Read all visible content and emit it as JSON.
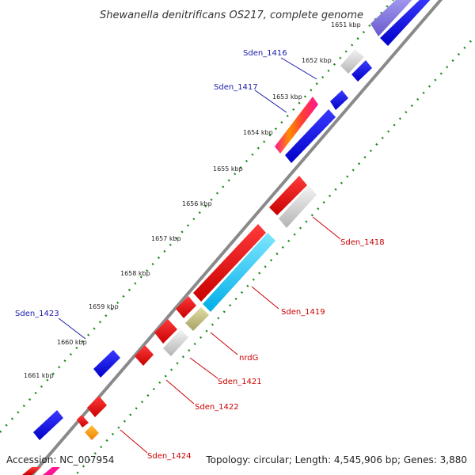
{
  "title": "Shewanella denitrificans OS217, complete genome",
  "kbp_marks": [
    "1651 kbp",
    "1652 kbp",
    "1653 kbp",
    "1654 kbp",
    "1655 kbp",
    "1656 kbp",
    "1657 kbp",
    "1658 kbp",
    "1659 kbp",
    "1660 kbp",
    "1661 kbp"
  ],
  "gene_labels": {
    "sden_1416": "Sden_1416",
    "sden_1417": "Sden_1417",
    "sden_1418": "Sden_1418",
    "sden_1419": "Sden_1419",
    "nrdg": "nrdG",
    "sden_1421": "Sden_1421",
    "sden_1422": "Sden_1422",
    "sden_1423": "Sden_1423",
    "sden_1424": "Sden_1424"
  },
  "footer": {
    "accession": "Accession: NC_007954",
    "stats": "Topology: circular; Length: 4,545,906 bp; Genes: 3,880"
  },
  "colors": {
    "backbone": "#888888",
    "tick": "#1a8a1a",
    "forward_gene": "#0000ee",
    "reverse_gene": "#ee0000",
    "hypothetical": "#cccccc",
    "label_blue": "#1a1aaa",
    "label_red": "#cc0000"
  }
}
